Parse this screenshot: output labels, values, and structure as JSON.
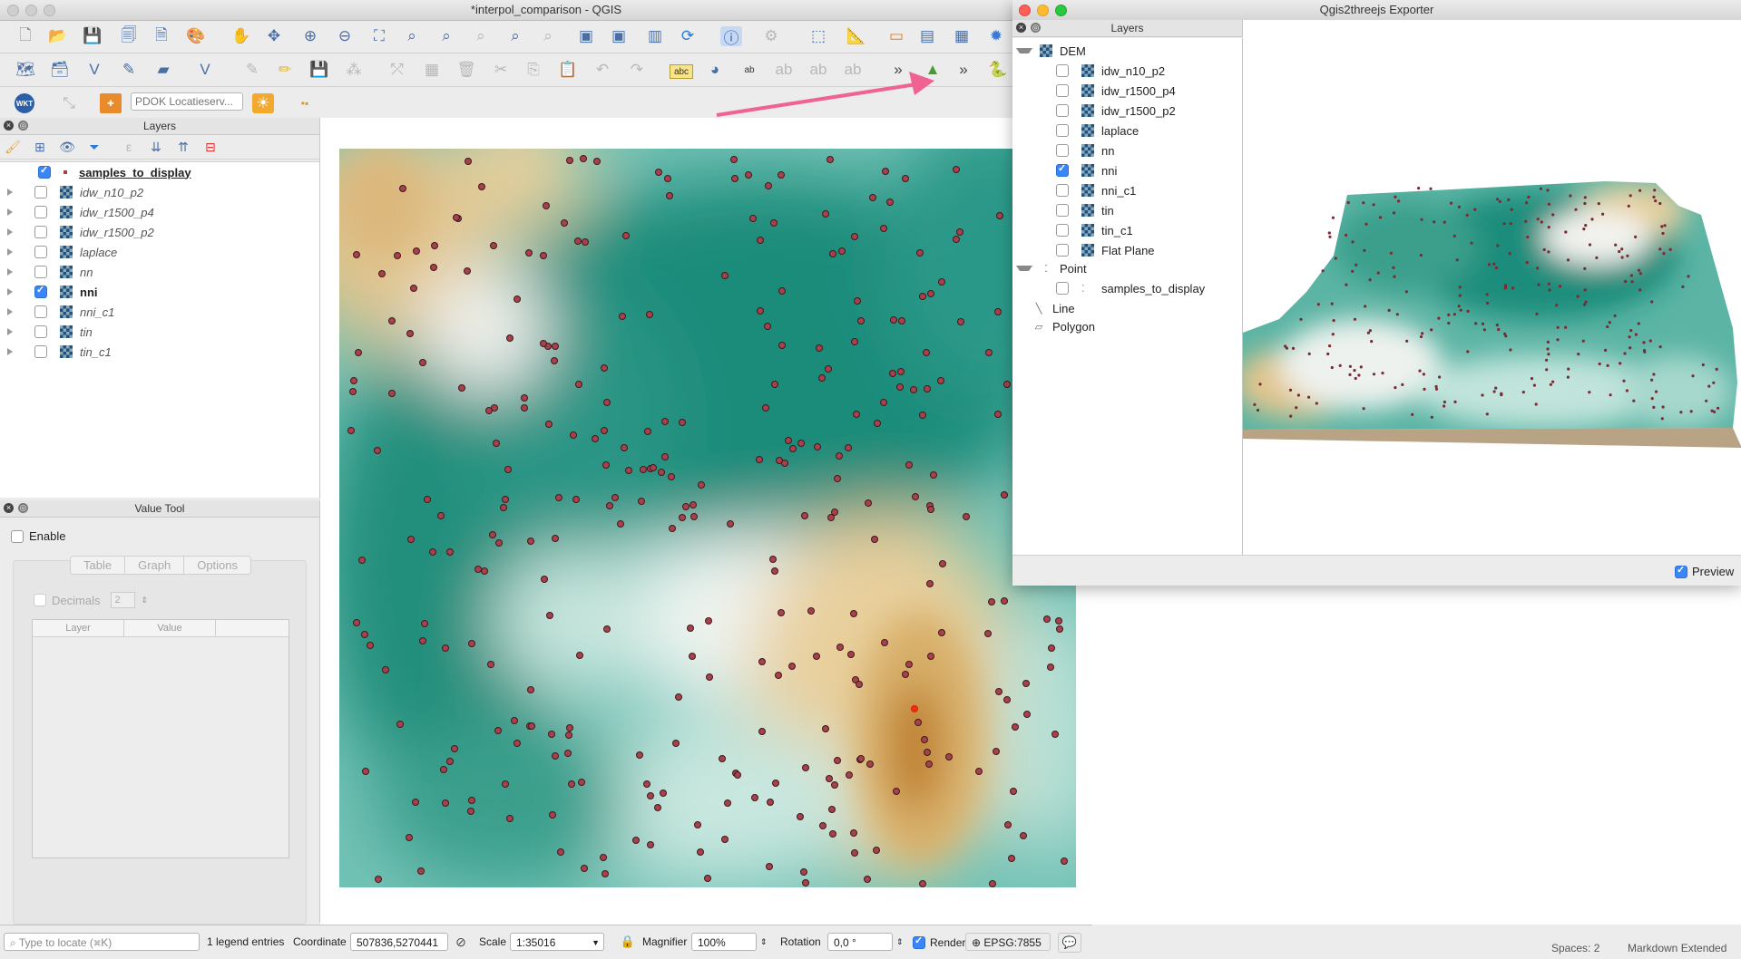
{
  "qgis": {
    "title": "*interpol_comparison - QGIS",
    "locator_placeholder": "PDOK Locatieserv...",
    "layers_panel": {
      "title": "Layers",
      "items": [
        {
          "label": "samples_to_display",
          "checked": true,
          "bold": true,
          "italic": false,
          "type": "point"
        },
        {
          "label": "idw_n10_p2",
          "checked": false,
          "bold": false,
          "italic": true,
          "type": "raster"
        },
        {
          "label": "idw_r1500_p4",
          "checked": false,
          "bold": false,
          "italic": true,
          "type": "raster"
        },
        {
          "label": "idw_r1500_p2",
          "checked": false,
          "bold": false,
          "italic": true,
          "type": "raster"
        },
        {
          "label": "laplace",
          "checked": false,
          "bold": false,
          "italic": true,
          "type": "raster"
        },
        {
          "label": "nn",
          "checked": false,
          "bold": false,
          "italic": true,
          "type": "raster"
        },
        {
          "label": "nni",
          "checked": true,
          "bold": true,
          "italic": false,
          "type": "raster"
        },
        {
          "label": "nni_c1",
          "checked": false,
          "bold": false,
          "italic": true,
          "type": "raster"
        },
        {
          "label": "tin",
          "checked": false,
          "bold": false,
          "italic": true,
          "type": "raster"
        },
        {
          "label": "tin_c1",
          "checked": false,
          "bold": false,
          "italic": true,
          "type": "raster"
        }
      ]
    },
    "value_tool": {
      "title": "Value Tool",
      "enable_label": "Enable",
      "tabs": [
        "Table",
        "Graph",
        "Options"
      ],
      "decimals_label": "Decimals",
      "decimals_value": "2",
      "columns": [
        "Layer",
        "Value"
      ]
    },
    "statusbar": {
      "locate_placeholder": "Type to locate (⌘K)",
      "legend_entries": "1 legend entries",
      "coordinate_label": "Coordinate",
      "coordinate_value": "507836,5270441",
      "scale_label": "Scale",
      "scale_value": "1:35016",
      "magnifier_label": "Magnifier",
      "magnifier_value": "100%",
      "rotation_label": "Rotation",
      "rotation_value": "0,0 °",
      "render_label": "Render",
      "crs": "EPSG:7855"
    }
  },
  "exporter": {
    "title": "Qgis2threejs Exporter",
    "layers_title": "Layers",
    "groups": [
      {
        "label": "DEM",
        "items": [
          {
            "label": "idw_n10_p2",
            "checked": false
          },
          {
            "label": "idw_r1500_p4",
            "checked": false
          },
          {
            "label": "idw_r1500_p2",
            "checked": false
          },
          {
            "label": "laplace",
            "checked": false
          },
          {
            "label": "nn",
            "checked": false
          },
          {
            "label": "nni",
            "checked": true
          },
          {
            "label": "nni_c1",
            "checked": false
          },
          {
            "label": "tin",
            "checked": false
          },
          {
            "label": "tin_c1",
            "checked": false
          },
          {
            "label": "Flat Plane",
            "checked": false
          }
        ]
      },
      {
        "label": "Point",
        "items": [
          {
            "label": "samples_to_display",
            "checked": false
          }
        ]
      },
      {
        "label": "Line",
        "items": []
      },
      {
        "label": "Polygon",
        "items": []
      }
    ],
    "preview_label": "Preview"
  },
  "background_editor": {
    "spaces": "Spaces: 2",
    "mode": "Markdown Extended"
  },
  "icons": [
    "new-project-icon",
    "open-project-icon",
    "save-icon",
    "pan-icon",
    "zoom-in-icon",
    "zoom-out-icon",
    "identify-icon",
    "refresh-icon",
    "qgis2threejs-icon",
    "python-icon"
  ],
  "colors": {
    "accent": "#3b86f7",
    "annotation_arrow": "#f06292",
    "sample_point": "#a8414b"
  }
}
